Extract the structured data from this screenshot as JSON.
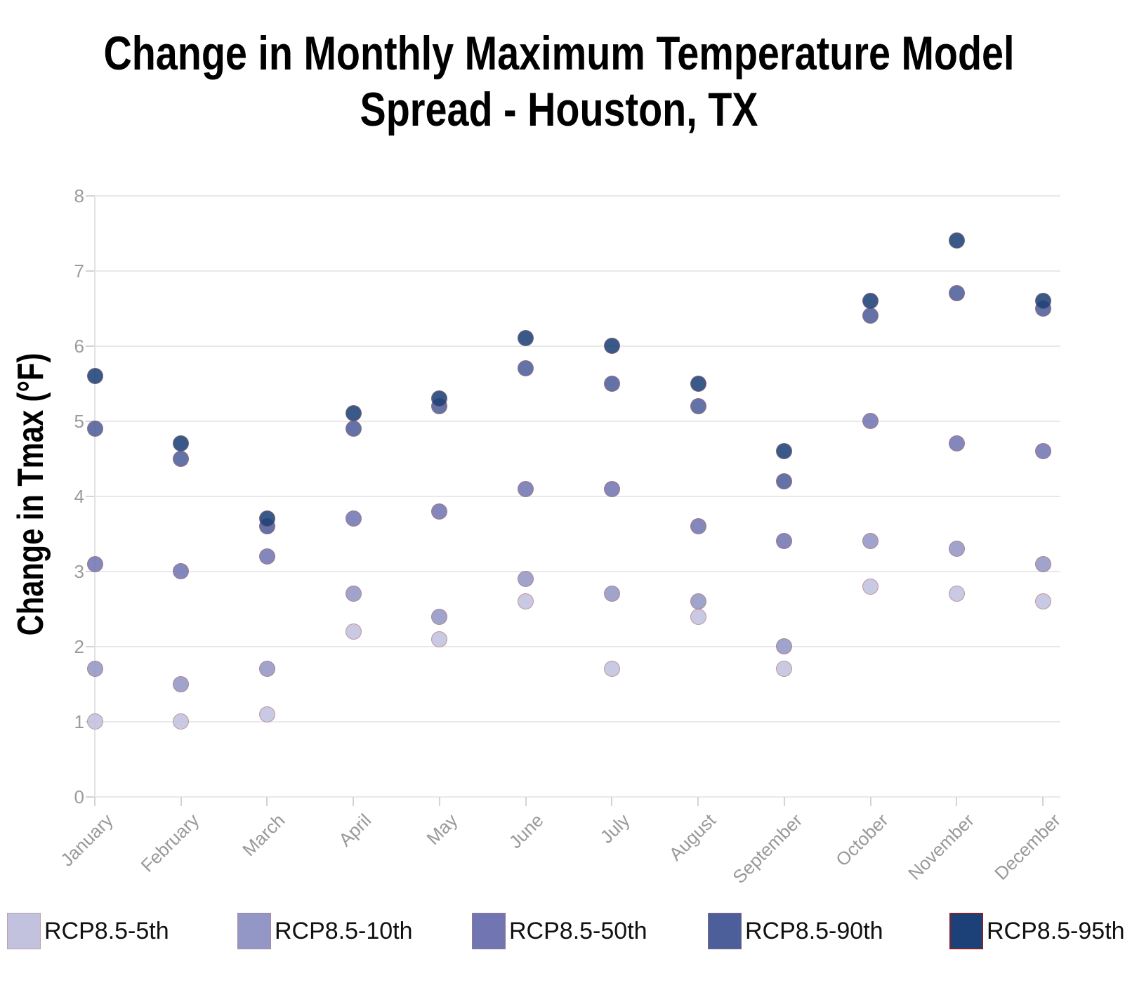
{
  "title": {
    "text": "Change in Monthly Maximum Temperature Model Spread - Houston, TX",
    "lines": [
      "Change in Monthly Maximum Temperature Model",
      "Spread - Houston, TX"
    ]
  },
  "chart_data": {
    "type": "scatter",
    "title": "Change in Monthly Maximum Temperature Model Spread - Houston, TX",
    "xlabel": "",
    "ylabel": "Change in Tmax (°F)",
    "categories": [
      "January",
      "February",
      "March",
      "April",
      "May",
      "June",
      "July",
      "August",
      "September",
      "October",
      "November",
      "December"
    ],
    "ylim": [
      0,
      8
    ],
    "yticks": [
      "0",
      "1",
      "2",
      "3",
      "4",
      "5",
      "6",
      "7",
      "8"
    ],
    "grid": true,
    "legend_position": "bottom",
    "marker_outline_color": "#ac544a",
    "series": [
      {
        "name": "RCP8.5-5th",
        "color": "#c2c2df",
        "values": [
          1.0,
          1.0,
          1.1,
          2.2,
          2.1,
          2.6,
          1.7,
          2.4,
          1.7,
          2.8,
          2.7,
          2.6
        ]
      },
      {
        "name": "RCP8.5-10th",
        "color": "#9397c5",
        "values": [
          1.7,
          1.5,
          1.7,
          2.7,
          2.4,
          2.9,
          2.7,
          2.6,
          2.0,
          3.4,
          3.3,
          3.1
        ]
      },
      {
        "name": "RCP8.5-50th",
        "color": "#7176b3",
        "values": [
          3.1,
          3.0,
          3.2,
          3.7,
          3.8,
          4.1,
          4.1,
          3.6,
          3.4,
          5.0,
          4.7,
          4.6
        ]
      },
      {
        "name": "RCP8.5-90th",
        "color": "#4c5f9b",
        "values": [
          4.9,
          4.5,
          3.6,
          4.9,
          5.2,
          5.7,
          5.5,
          5.2,
          4.2,
          6.4,
          6.7,
          6.5
        ]
      },
      {
        "name": "RCP8.5-95th",
        "color": "#1c4178",
        "values": [
          5.6,
          4.7,
          3.7,
          5.1,
          5.3,
          6.1,
          6.0,
          5.5,
          4.6,
          6.6,
          7.4,
          6.6
        ]
      }
    ]
  }
}
